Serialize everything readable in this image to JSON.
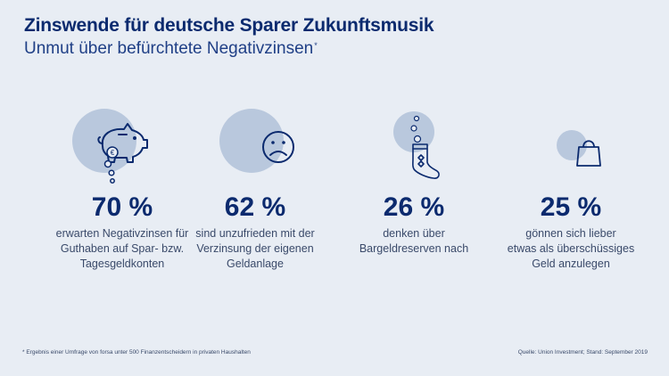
{
  "header": {
    "title": "Zinswende für deutsche Sparer Zukunftsmusik",
    "subtitle": "Unmut über befürchtete Negativzinsen",
    "subtitle_marker": "*"
  },
  "stats": [
    {
      "icon": "piggy-bank-icon",
      "value": "70 %",
      "lines": [
        "erwarten Negativzinsen für",
        "Guthaben auf Spar- bzw.",
        "Tagesgeldkonten"
      ]
    },
    {
      "icon": "sad-face-icon",
      "value": "62 %",
      "lines": [
        "sind unzufrieden mit der",
        "Verzinsung der eigenen",
        "Geldanlage"
      ]
    },
    {
      "icon": "sock-money-icon",
      "value": "26 %",
      "lines": [
        "denken über",
        "Bargeldreserven nach"
      ]
    },
    {
      "icon": "shopping-bag-icon",
      "value": "25 %",
      "lines": [
        "gönnen sich lieber",
        "etwas als überschüssiges",
        "Geld anzulegen"
      ]
    }
  ],
  "footer": {
    "footnote": "* Ergebnis einer Umfrage von forsa unter 500 Finanzentscheidern in privaten Haushalten",
    "source": "Quelle: Union Investment; Stand: September 2019"
  },
  "colors": {
    "background": "#e8edf4",
    "navy": "#0b2a6e",
    "circle": "#b9c8dd",
    "text": "#3a4a6a"
  }
}
